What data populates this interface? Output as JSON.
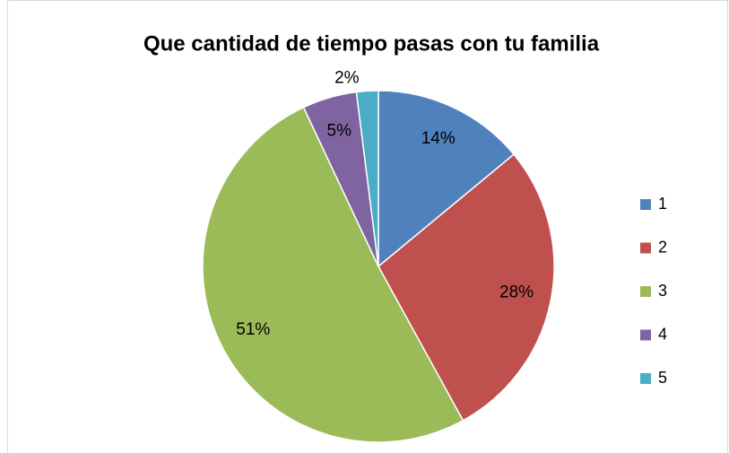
{
  "chart_data": {
    "type": "pie",
    "title": "Que cantidad de tiempo pasas con tu familia",
    "categories": [
      "1",
      "2",
      "3",
      "4",
      "5"
    ],
    "values": [
      14,
      28,
      51,
      5,
      2
    ],
    "value_labels": [
      "14%",
      "28%",
      "51%",
      "5%",
      "2%"
    ],
    "colors": [
      "#4f81bd",
      "#c0504d",
      "#9bbb59",
      "#8064a2",
      "#4bacc6"
    ],
    "legend": "right"
  }
}
